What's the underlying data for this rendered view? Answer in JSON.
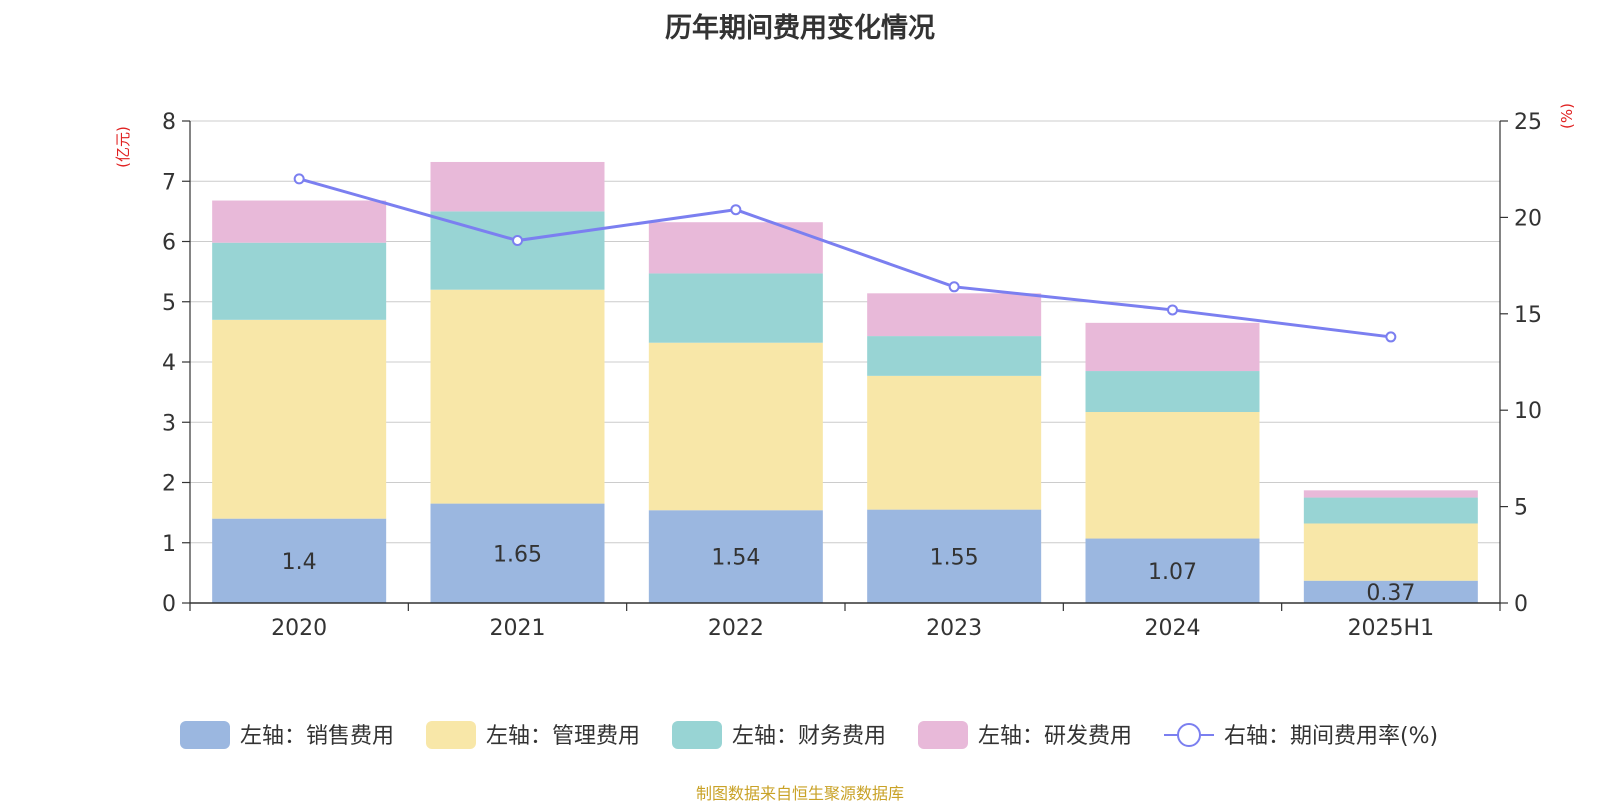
{
  "chart_data": {
    "type": "bar",
    "title": "历年期间费用变化情况",
    "categories": [
      "2020",
      "2021",
      "2022",
      "2023",
      "2024",
      "2025H1"
    ],
    "left_axis": {
      "unit_label": "(亿元)",
      "ylim": [
        0,
        8
      ],
      "ticks": [
        "0",
        "1",
        "2",
        "3",
        "4",
        "5",
        "6",
        "7",
        "8"
      ]
    },
    "right_axis": {
      "unit_label": "(%)",
      "ylim": [
        0,
        25
      ],
      "ticks": [
        "0",
        "5",
        "10",
        "15",
        "20",
        "25"
      ]
    },
    "grid": true,
    "legend_position": "bottom",
    "series": [
      {
        "name": "左轴：销售费用",
        "type": "bar",
        "stack": true,
        "axis": "left",
        "color": "#9bb7e0",
        "values": [
          1.4,
          1.65,
          1.54,
          1.55,
          1.07,
          0.37
        ],
        "value_labels": [
          "1.4",
          "1.65",
          "1.54",
          "1.55",
          "1.07",
          "0.37"
        ]
      },
      {
        "name": "左轴：管理费用",
        "type": "bar",
        "stack": true,
        "axis": "left",
        "color": "#f8e7a8",
        "values": [
          3.3,
          3.55,
          2.78,
          2.22,
          2.1,
          0.95
        ]
      },
      {
        "name": "左轴：财务费用",
        "type": "bar",
        "stack": true,
        "axis": "left",
        "color": "#98d4d4",
        "values": [
          1.28,
          1.3,
          1.15,
          0.66,
          0.68,
          0.43
        ]
      },
      {
        "name": "左轴：研发费用",
        "type": "bar",
        "stack": true,
        "axis": "left",
        "color": "#e8b9d9",
        "values": [
          0.7,
          0.82,
          0.85,
          0.71,
          0.8,
          0.12
        ]
      },
      {
        "name": "右轴：期间费用率(%)",
        "type": "line",
        "axis": "right",
        "color": "#7b7ff0",
        "values": [
          22.0,
          18.8,
          20.4,
          16.4,
          15.2,
          13.8
        ]
      }
    ]
  },
  "source_note": "制图数据来自恒生聚源数据库"
}
